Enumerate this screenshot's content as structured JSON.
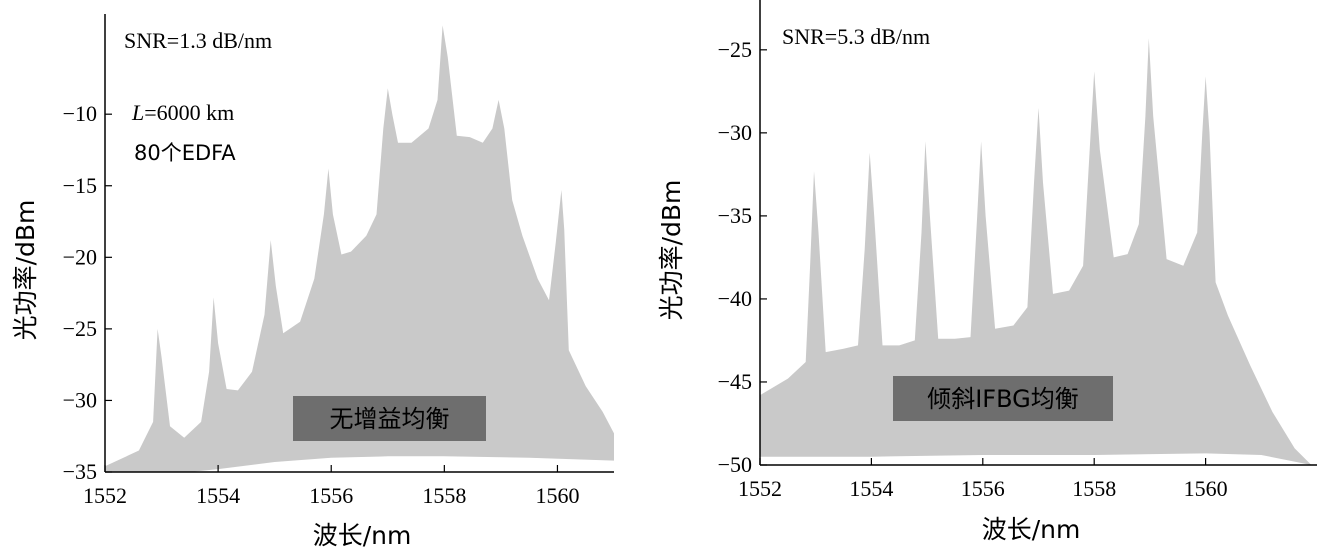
{
  "chart_data": [
    {
      "type": "area",
      "xlabel": "波长/nm",
      "ylabel": "光功率/dBm",
      "xlim": [
        1552,
        1561
      ],
      "ylim": [
        -35,
        -3
      ],
      "xticks": [
        1552,
        1554,
        1556,
        1558,
        1560
      ],
      "yticks": [
        -35,
        -30,
        -25,
        -20,
        -15,
        -10
      ],
      "tick_labels_x": [
        "1552",
        "1554",
        "1556",
        "1558",
        "1560"
      ],
      "tick_labels_y": [
        "−35",
        "−30",
        "−25",
        "−20",
        "−15",
        "−10"
      ],
      "annotations": {
        "snr": "SNR=1.3 dB/nm",
        "length_var": "L",
        "length_rest": "=6000 km",
        "edfa": "80个EDFA"
      },
      "label": "无增益均衡",
      "upper": [
        [
          1552,
          -34.6
        ],
        [
          1552.6,
          -33.5
        ],
        [
          1552.85,
          -31.5
        ],
        [
          1552.93,
          -25
        ],
        [
          1553.0,
          -27
        ],
        [
          1553.15,
          -31.8
        ],
        [
          1553.4,
          -32.6
        ],
        [
          1553.7,
          -31.5
        ],
        [
          1553.84,
          -28
        ],
        [
          1553.92,
          -22.8
        ],
        [
          1554.0,
          -26
        ],
        [
          1554.15,
          -29.2
        ],
        [
          1554.35,
          -29.3
        ],
        [
          1554.6,
          -28
        ],
        [
          1554.82,
          -24
        ],
        [
          1554.93,
          -18.8
        ],
        [
          1555.02,
          -22
        ],
        [
          1555.15,
          -25.3
        ],
        [
          1555.45,
          -24.5
        ],
        [
          1555.7,
          -21.5
        ],
        [
          1555.87,
          -17
        ],
        [
          1555.95,
          -13.8
        ],
        [
          1556.03,
          -17
        ],
        [
          1556.18,
          -19.8
        ],
        [
          1556.35,
          -19.6
        ],
        [
          1556.62,
          -18.5
        ],
        [
          1556.8,
          -17
        ],
        [
          1556.92,
          -11
        ],
        [
          1557.0,
          -8.2
        ],
        [
          1557.08,
          -10
        ],
        [
          1557.18,
          -12
        ],
        [
          1557.42,
          -12
        ],
        [
          1557.72,
          -11
        ],
        [
          1557.88,
          -9
        ],
        [
          1557.97,
          -3.8
        ],
        [
          1558.06,
          -6
        ],
        [
          1558.22,
          -11.5
        ],
        [
          1558.45,
          -11.6
        ],
        [
          1558.68,
          -12
        ],
        [
          1558.85,
          -11
        ],
        [
          1558.96,
          -9
        ],
        [
          1559.06,
          -11
        ],
        [
          1559.2,
          -16
        ],
        [
          1559.38,
          -18.5
        ],
        [
          1559.65,
          -21.5
        ],
        [
          1559.85,
          -23
        ],
        [
          1559.97,
          -19
        ],
        [
          1560.07,
          -15.3
        ],
        [
          1560.12,
          -18
        ],
        [
          1560.2,
          -26.5
        ],
        [
          1560.5,
          -29
        ],
        [
          1560.8,
          -30.8
        ],
        [
          1561,
          -32.3
        ]
      ],
      "lower": [
        [
          1561,
          -34.2
        ],
        [
          1559.5,
          -34.0
        ],
        [
          1558,
          -33.9
        ],
        [
          1557,
          -33.9
        ],
        [
          1556,
          -34.0
        ],
        [
          1555,
          -34.3
        ],
        [
          1554,
          -34.8
        ],
        [
          1553.5,
          -35
        ],
        [
          1552,
          -35
        ]
      ]
    },
    {
      "type": "area",
      "xlabel": "波长/nm",
      "ylabel": "光功率/dBm",
      "xlim": [
        1552,
        1562
      ],
      "ylim": [
        -50,
        -22
      ],
      "xticks": [
        1552,
        1554,
        1556,
        1558,
        1560
      ],
      "yticks": [
        -50,
        -45,
        -40,
        -35,
        -30,
        -25
      ],
      "tick_labels_x": [
        "1552",
        "1554",
        "1556",
        "1558",
        "1560"
      ],
      "tick_labels_y": [
        "−50",
        "−45",
        "−40",
        "−35",
        "−30",
        "−25"
      ],
      "annotations": {
        "snr": "SNR=5.3 dB/nm"
      },
      "label": "倾斜IFBG均衡",
      "upper": [
        [
          1552,
          -45.8
        ],
        [
          1552.5,
          -44.8
        ],
        [
          1552.82,
          -43.8
        ],
        [
          1552.9,
          -38
        ],
        [
          1552.97,
          -32.3
        ],
        [
          1553.05,
          -36
        ],
        [
          1553.18,
          -43.2
        ],
        [
          1553.5,
          -43
        ],
        [
          1553.76,
          -42.8
        ],
        [
          1553.88,
          -37
        ],
        [
          1553.97,
          -31.2
        ],
        [
          1554.05,
          -35
        ],
        [
          1554.2,
          -42.8
        ],
        [
          1554.5,
          -42.8
        ],
        [
          1554.78,
          -42.5
        ],
        [
          1554.9,
          -36
        ],
        [
          1554.97,
          -30.5
        ],
        [
          1555.05,
          -35
        ],
        [
          1555.2,
          -42.4
        ],
        [
          1555.5,
          -42.4
        ],
        [
          1555.78,
          -42.3
        ],
        [
          1555.9,
          -35
        ],
        [
          1555.97,
          -30.5
        ],
        [
          1556.05,
          -35
        ],
        [
          1556.22,
          -41.8
        ],
        [
          1556.55,
          -41.6
        ],
        [
          1556.8,
          -40.5
        ],
        [
          1556.92,
          -33
        ],
        [
          1557.0,
          -28.5
        ],
        [
          1557.08,
          -33
        ],
        [
          1557.26,
          -39.7
        ],
        [
          1557.55,
          -39.5
        ],
        [
          1557.8,
          -38
        ],
        [
          1557.92,
          -31
        ],
        [
          1558.0,
          -26.3
        ],
        [
          1558.1,
          -31
        ],
        [
          1558.35,
          -37.5
        ],
        [
          1558.6,
          -37.3
        ],
        [
          1558.8,
          -35.5
        ],
        [
          1558.92,
          -29
        ],
        [
          1558.98,
          -24.3
        ],
        [
          1559.06,
          -29
        ],
        [
          1559.3,
          -37.6
        ],
        [
          1559.6,
          -38
        ],
        [
          1559.85,
          -36
        ],
        [
          1559.94,
          -30
        ],
        [
          1560.0,
          -26.6
        ],
        [
          1560.07,
          -30
        ],
        [
          1560.18,
          -39
        ],
        [
          1560.4,
          -41
        ],
        [
          1560.8,
          -44
        ],
        [
          1561.2,
          -46.8
        ],
        [
          1561.6,
          -49
        ],
        [
          1561.9,
          -50
        ]
      ],
      "lower": [
        [
          1561.9,
          -50
        ],
        [
          1561,
          -49.4
        ],
        [
          1560,
          -49.3
        ],
        [
          1558,
          -49.4
        ],
        [
          1556,
          -49.4
        ],
        [
          1554,
          -49.5
        ],
        [
          1552.4,
          -49.5
        ],
        [
          1552,
          -49.5
        ]
      ]
    }
  ]
}
